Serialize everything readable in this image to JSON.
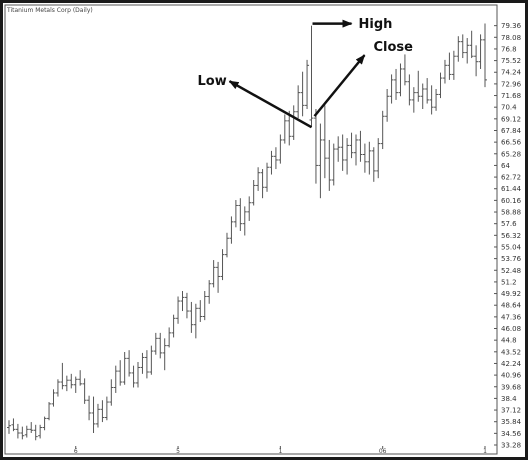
{
  "chart_data": {
    "type": "ohlc",
    "title": "Titanium Metals Corp (Daily)",
    "ylim": [
      33.28,
      80.64
    ],
    "y_ticks": [
      33.28,
      34.56,
      35.84,
      37.12,
      38.4,
      39.68,
      40.96,
      42.24,
      43.52,
      44.8,
      46.08,
      47.36,
      48.64,
      49.92,
      51.2,
      52.48,
      53.76,
      55.04,
      56.32,
      57.6,
      58.88,
      60.16,
      61.44,
      62.72,
      64,
      65.28,
      66.56,
      67.84,
      69.12,
      70.4,
      71.68,
      72.96,
      74.24,
      75.52,
      76.8,
      78.08,
      79.36
    ],
    "x_ticks": [
      "6",
      "5",
      "1",
      "06",
      "1"
    ],
    "x_tick_index": [
      15,
      38,
      61,
      84,
      107
    ],
    "grid": false,
    "annotations": [
      {
        "label": "High",
        "bar": 68
      },
      {
        "label": "Close",
        "bar": 68
      },
      {
        "label": "Low",
        "bar": 68
      }
    ],
    "bars": [
      [
        35.2,
        36.0,
        34.5,
        35.4
      ],
      [
        35.5,
        36.2,
        34.8,
        35.0
      ],
      [
        35.0,
        35.6,
        34.0,
        34.6
      ],
      [
        34.6,
        35.3,
        33.9,
        34.3
      ],
      [
        34.4,
        35.4,
        34.1,
        35.0
      ],
      [
        35.0,
        35.8,
        34.6,
        34.9
      ],
      [
        34.9,
        35.5,
        33.8,
        34.2
      ],
      [
        34.3,
        35.5,
        34.0,
        35.2
      ],
      [
        35.2,
        36.4,
        34.9,
        36.2
      ],
      [
        36.2,
        38.0,
        36.0,
        37.8
      ],
      [
        37.8,
        39.4,
        37.5,
        39.0
      ],
      [
        39.0,
        40.5,
        38.6,
        40.2
      ],
      [
        40.2,
        42.3,
        39.4,
        39.8
      ],
      [
        39.8,
        40.9,
        39.2,
        40.4
      ],
      [
        40.4,
        41.1,
        39.5,
        39.9
      ],
      [
        39.9,
        40.8,
        39.0,
        40.5
      ],
      [
        40.5,
        41.5,
        39.8,
        40.0
      ],
      [
        40.0,
        40.6,
        37.8,
        38.2
      ],
      [
        38.2,
        38.7,
        36.0,
        36.8
      ],
      [
        36.8,
        38.6,
        34.6,
        35.6
      ],
      [
        35.6,
        37.8,
        35.2,
        37.2
      ],
      [
        37.2,
        38.2,
        35.8,
        36.3
      ],
      [
        36.3,
        38.6,
        36.0,
        38.0
      ],
      [
        38.0,
        40.5,
        37.6,
        39.6
      ],
      [
        39.6,
        42.0,
        39.0,
        41.4
      ],
      [
        41.4,
        42.6,
        39.8,
        40.2
      ],
      [
        40.2,
        43.5,
        39.9,
        42.8
      ],
      [
        42.8,
        43.7,
        40.8,
        41.2
      ],
      [
        41.2,
        42.0,
        39.6,
        40.1
      ],
      [
        40.1,
        42.4,
        39.6,
        41.8
      ],
      [
        41.8,
        43.4,
        41.1,
        42.9
      ],
      [
        42.9,
        43.7,
        40.6,
        41.3
      ],
      [
        41.3,
        44.2,
        41.0,
        43.6
      ],
      [
        43.6,
        45.6,
        43.2,
        45.0
      ],
      [
        45.0,
        45.6,
        42.8,
        43.4
      ],
      [
        43.4,
        45.0,
        41.5,
        44.2
      ],
      [
        44.2,
        46.2,
        44.0,
        45.6
      ],
      [
        45.6,
        47.6,
        45.1,
        47.2
      ],
      [
        47.2,
        49.6,
        46.6,
        49.1
      ],
      [
        49.1,
        50.2,
        48.0,
        49.5
      ],
      [
        49.5,
        50.0,
        47.2,
        48.0
      ],
      [
        48.0,
        49.0,
        45.6,
        46.5
      ],
      [
        46.5,
        48.8,
        45.0,
        48.3
      ],
      [
        48.3,
        49.2,
        46.8,
        47.4
      ],
      [
        47.4,
        50.2,
        47.0,
        49.6
      ],
      [
        49.6,
        51.4,
        48.8,
        51.0
      ],
      [
        51.0,
        53.6,
        50.6,
        52.8
      ],
      [
        52.8,
        53.4,
        50.0,
        51.8
      ],
      [
        51.8,
        54.8,
        51.4,
        54.2
      ],
      [
        54.2,
        56.6,
        53.9,
        56.0
      ],
      [
        56.0,
        58.4,
        55.4,
        57.8
      ],
      [
        57.8,
        60.2,
        57.2,
        59.6
      ],
      [
        59.6,
        60.4,
        56.8,
        57.6
      ],
      [
        57.6,
        59.5,
        56.3,
        58.9
      ],
      [
        58.9,
        60.6,
        57.9,
        59.9
      ],
      [
        59.9,
        62.4,
        59.6,
        61.8
      ],
      [
        61.8,
        63.8,
        61.2,
        63.2
      ],
      [
        63.2,
        63.6,
        60.4,
        61.6
      ],
      [
        61.6,
        64.3,
        61.1,
        63.8
      ],
      [
        63.8,
        65.6,
        63.0,
        65.0
      ],
      [
        65.0,
        66.0,
        63.6,
        64.6
      ],
      [
        64.6,
        67.4,
        64.2,
        66.8
      ],
      [
        66.8,
        69.6,
        66.4,
        68.9
      ],
      [
        68.9,
        70.0,
        66.2,
        67.2
      ],
      [
        67.2,
        70.6,
        66.8,
        69.9
      ],
      [
        69.9,
        72.8,
        69.2,
        72.0
      ],
      [
        72.0,
        74.3,
        69.4,
        70.6
      ],
      [
        70.6,
        75.6,
        70.2,
        75.0
      ],
      [
        69.0,
        79.36,
        68.2,
        69.2
      ],
      [
        69.2,
        70.2,
        62.0,
        64.0
      ],
      [
        64.0,
        68.6,
        60.4,
        66.8
      ],
      [
        66.8,
        70.6,
        62.6,
        64.8
      ],
      [
        64.8,
        66.8,
        61.2,
        62.4
      ],
      [
        62.4,
        66.4,
        61.8,
        65.8
      ],
      [
        65.8,
        67.2,
        64.4,
        66.0
      ],
      [
        66.0,
        67.4,
        63.4,
        64.6
      ],
      [
        64.6,
        67.0,
        63.0,
        66.2
      ],
      [
        66.2,
        67.6,
        64.8,
        65.4
      ],
      [
        65.4,
        67.4,
        64.0,
        66.8
      ],
      [
        66.8,
        67.8,
        64.4,
        65.2
      ],
      [
        65.2,
        66.4,
        63.2,
        64.4
      ],
      [
        64.4,
        66.6,
        63.0,
        65.6
      ],
      [
        65.6,
        66.0,
        62.2,
        63.4
      ],
      [
        63.4,
        67.0,
        62.6,
        66.4
      ],
      [
        66.4,
        70.0,
        65.8,
        69.4
      ],
      [
        69.4,
        72.4,
        68.8,
        71.6
      ],
      [
        71.6,
        74.0,
        70.8,
        73.4
      ],
      [
        73.4,
        74.6,
        71.2,
        72.0
      ],
      [
        72.0,
        75.2,
        71.6,
        74.6
      ],
      [
        74.6,
        76.2,
        72.8,
        73.2
      ],
      [
        73.2,
        74.0,
        70.6,
        71.2
      ],
      [
        71.2,
        72.6,
        69.8,
        72.0
      ],
      [
        72.0,
        74.4,
        71.0,
        71.6
      ],
      [
        71.6,
        73.0,
        70.2,
        72.4
      ],
      [
        72.4,
        73.6,
        70.8,
        71.2
      ],
      [
        71.2,
        72.8,
        69.6,
        70.4
      ],
      [
        70.4,
        72.4,
        70.0,
        71.8
      ],
      [
        71.8,
        74.2,
        71.4,
        73.6
      ],
      [
        73.6,
        75.6,
        73.0,
        75.0
      ],
      [
        75.0,
        76.4,
        73.4,
        74.0
      ],
      [
        74.0,
        76.6,
        73.4,
        76.0
      ],
      [
        76.0,
        78.2,
        75.4,
        77.6
      ],
      [
        77.6,
        78.4,
        75.8,
        76.4
      ],
      [
        76.4,
        78.0,
        75.2,
        77.2
      ],
      [
        77.2,
        78.8,
        75.8,
        76.0
      ],
      [
        76.0,
        77.2,
        73.8,
        75.4
      ],
      [
        75.4,
        78.4,
        74.6,
        77.8
      ],
      [
        77.8,
        79.6,
        72.6,
        73.4
      ]
    ]
  }
}
